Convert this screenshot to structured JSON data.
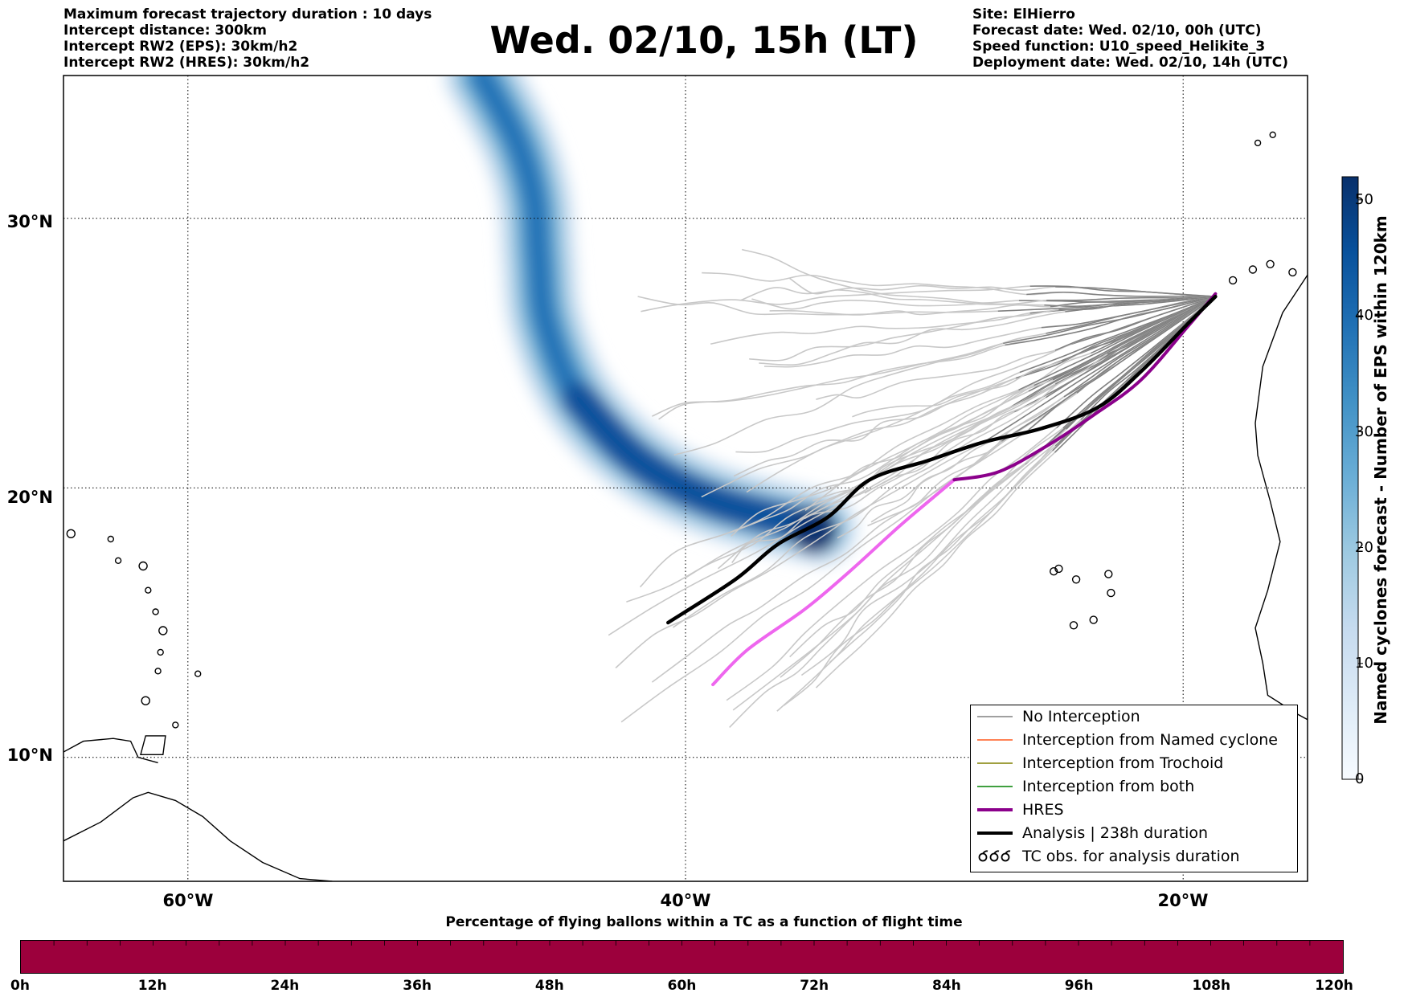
{
  "header_left": [
    "Maximum forecast trajectory duration : 10 days",
    "Intercept distance: 300km",
    "Intercept RW2 (EPS):  30km/h2",
    "Intercept RW2 (HRES): 30km/h2"
  ],
  "header_right": [
    "Site: ElHierro",
    "Forecast date: Wed. 02/10, 00h (UTC)",
    "Speed function: U10_speed_Helikite_3",
    "Deployment date: Wed. 02/10, 14h (UTC)"
  ],
  "title": "Wed. 02/10, 15h (LT)",
  "map": {
    "lat_labels": [
      "30°N",
      "20°N",
      "10°N"
    ],
    "lon_labels": [
      "60°W",
      "40°W",
      "20°W"
    ],
    "extent": {
      "lon_min": -65,
      "lon_max": -15,
      "lat_min": 5.4,
      "lat_max": 35.3
    },
    "gridlines": "dotted",
    "eps_tracks_count": 50,
    "colors": {
      "no_interception": "#808080",
      "named_cyclone": "#ff5a1f",
      "trochoid": "#808000",
      "both": "#008000",
      "hres": "#8b008b",
      "hres_forecast": "#ee66ee",
      "analysis": "#000000",
      "light_tracks": "#c8c8c8"
    }
  },
  "legend": {
    "placement": "lower-right",
    "items": [
      {
        "label": "No Interception",
        "kind": "line",
        "color": "#808080",
        "width": 1.5
      },
      {
        "label": "Interception from Named cyclone",
        "kind": "line",
        "color": "#ff5a1f",
        "width": 1.5
      },
      {
        "label": "Interception from Trochoid",
        "kind": "line",
        "color": "#808000",
        "width": 1.5
      },
      {
        "label": "Interception from both",
        "kind": "line",
        "color": "#008000",
        "width": 1.5
      },
      {
        "label": "HRES",
        "kind": "line",
        "color": "#8b008b",
        "width": 4
      },
      {
        "label": "Analysis | 238h duration",
        "kind": "line",
        "color": "#000000",
        "width": 4
      },
      {
        "label": "TC obs. for analysis duration",
        "kind": "symbol",
        "color": "#000000",
        "width": 1
      }
    ]
  },
  "colorbar": {
    "label": "Named cyclones forecast - Number of EPS within 120km",
    "ticks": [
      "0",
      "10",
      "20",
      "30",
      "40",
      "50"
    ],
    "range": [
      0,
      52
    ],
    "colormap": "Blues"
  },
  "time_bar": {
    "title": "Percentage of flying ballons within a TC as a function of flight time",
    "labels": [
      "0h",
      "12h",
      "24h",
      "36h",
      "48h",
      "60h",
      "72h",
      "84h",
      "96h",
      "108h",
      "120h"
    ],
    "fill_color": "#9c003c"
  },
  "chart_data": {
    "type": "map",
    "title": "Wed. 02/10, 15h (LT)",
    "density_swath": {
      "centerline_lon": [
        -48.2,
        -46.8,
        -46.1,
        -45.9,
        -45.6,
        -44.3,
        -41.9,
        -38.8,
        -34.6
      ],
      "centerline_lat": [
        35.3,
        32.9,
        30.8,
        28.5,
        26.1,
        23.3,
        21.0,
        19.5,
        18.5
      ],
      "widths_deg": [
        2.6,
        3.4,
        3.6,
        3.6,
        3.6,
        3.5,
        3.1,
        2.6,
        1.9
      ],
      "peak_count": 52
    },
    "analysis_track": {
      "lon": [
        -40.7,
        -38.0,
        -36.3,
        -34.3,
        -32.6,
        -30.3,
        -28.0,
        -25.7,
        -23.4,
        -21.6,
        -19.8,
        -18.7
      ],
      "lat": [
        15.0,
        16.6,
        17.9,
        18.9,
        20.3,
        21.0,
        21.7,
        22.2,
        23.0,
        24.4,
        26.1,
        27.1
      ]
    },
    "hres_track": {
      "lon": [
        -38.9,
        -37.5,
        -35.2,
        -33.4,
        -31.5,
        -30.1,
        -29.2,
        -27.4,
        -25.4,
        -23.6,
        -21.7,
        -19.8,
        -18.7
      ],
      "lat": [
        12.7,
        14.0,
        15.5,
        16.9,
        18.5,
        19.6,
        20.3,
        20.6,
        21.6,
        22.7,
        24.0,
        26.0,
        27.2
      ]
    },
    "eps_spread": {
      "origin_lon": -18.7,
      "origin_lat": 27.1,
      "end_lon_range": [
        -43.2,
        -32.5
      ],
      "end_lat_range": [
        10.0,
        28.9
      ]
    }
  }
}
